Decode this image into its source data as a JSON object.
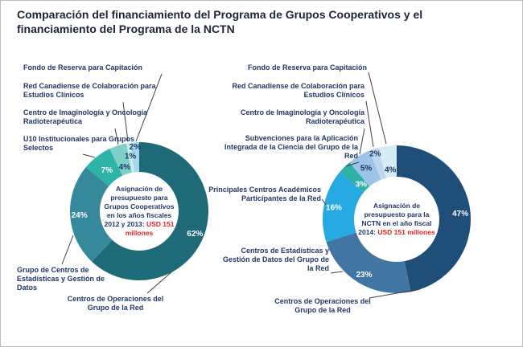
{
  "title_lines": [
    "Comparación del financiamiento del Programa de Grupos Cooperativos y el",
    "financiamiento del Programa de la NCTN"
  ],
  "colors": {
    "title_text": "#1d2433",
    "label_text": "#1f3864",
    "amount_red": "#e32226",
    "leader_line": "#404040"
  },
  "chart_data": [
    {
      "type": "pie",
      "donut": true,
      "unit": "%",
      "start_angle": "12 o'clock, clockwise",
      "center_label": {
        "intro": "Asignación de presupuesto para Grupos Cooperativos en los años fiscales 2012 y 2013: ",
        "amount": "USD 151 millones"
      },
      "slices": [
        {
          "label": "Centros de Operaciones del Grupo de la Red",
          "value": 62,
          "color": "#1e6a78"
        },
        {
          "label": "Grupo de Centros de Estadísticas y Gestión de Datos",
          "value": 24,
          "color": "#35899b"
        },
        {
          "label": "U10 Institucionales para Grupos Selectos",
          "value": 7,
          "color": "#2db3a7"
        },
        {
          "label": "Centro de Imaginología y Oncología Radioterapéutica",
          "value": 4,
          "color": "#7fd0c9"
        },
        {
          "label": "Red Canadiense de Colaboración para Estudios Clínicos",
          "value": 1,
          "color": "#c9ebe6"
        },
        {
          "label": "Fondo de Reserva para Capitación",
          "value": 2,
          "color": "#a5d8ee"
        }
      ]
    },
    {
      "type": "pie",
      "donut": true,
      "unit": "%",
      "start_angle": "12 o'clock, clockwise",
      "center_label": {
        "intro": "Asignación de presupuesto para la NCTN en el año fiscal 2014: ",
        "amount": "USD 151 millones"
      },
      "slices": [
        {
          "label": "Centros de Operaciones del Grupo de la Red",
          "value": 47,
          "color": "#1f4e79"
        },
        {
          "label": "Centros de Estadísticas y Gestión de Datos del Grupo de la Red",
          "value": 23,
          "color": "#4176a4"
        },
        {
          "label": "Principales Centros Académicos Participantes de la Red",
          "value": 16,
          "color": "#27aae1"
        },
        {
          "label": "Subvenciones para la Aplicación Integrada de la Ciencia del Grupo de la Red",
          "value": 3,
          "color": "#2fb0a4"
        },
        {
          "label": "Centro de Imaginología y Oncología Radioterapéutica",
          "value": 5,
          "color": "#9dc3e6"
        },
        {
          "label": "Red Canadiense de Colaboración para Estudios Clínicos",
          "value": 2,
          "color": "#bdd7ee"
        },
        {
          "label": "Fondo de Reserva para Capitación",
          "value": 4,
          "color": "#d6ebf2"
        }
      ]
    }
  ]
}
